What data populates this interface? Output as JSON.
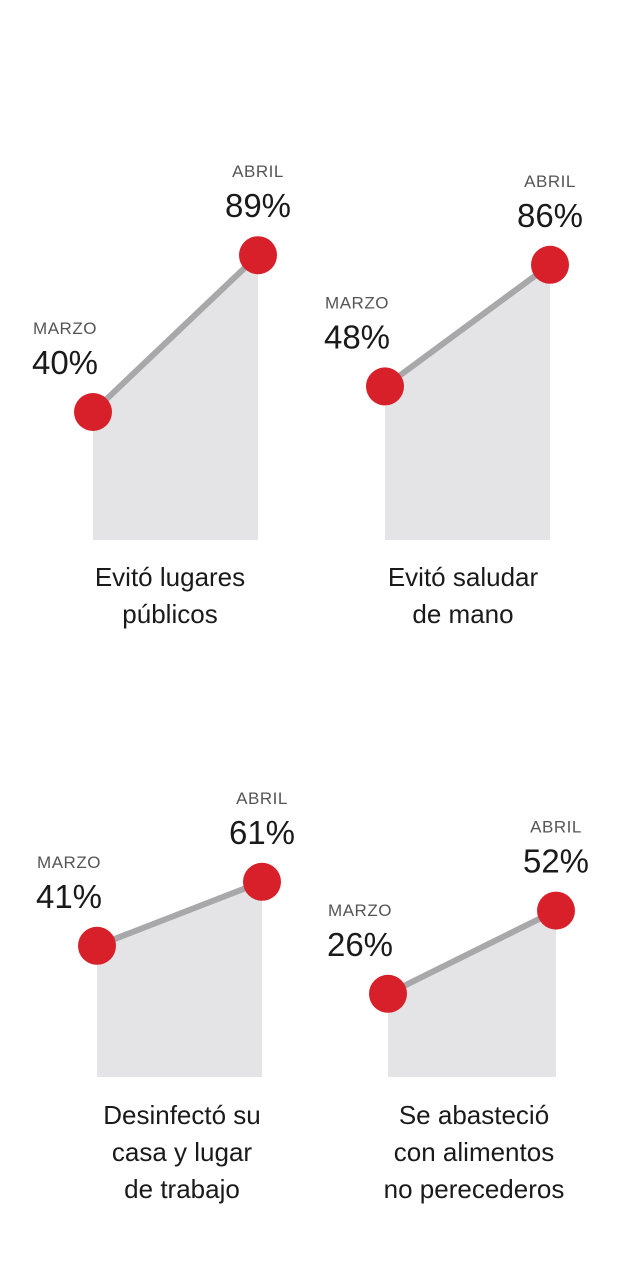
{
  "colors": {
    "area": "#e4e4e6",
    "line": "#a8a8ab",
    "marker": "#d7202a",
    "text": "#1a1a1a",
    "month_text": "#555555"
  },
  "chart_data": [
    {
      "type": "area",
      "categories": [
        "MARZO",
        "ABRIL"
      ],
      "values": [
        40,
        89
      ],
      "value_labels": [
        "40%",
        "89%"
      ],
      "caption": [
        "Evitó lugares",
        "públicos"
      ]
    },
    {
      "type": "area",
      "categories": [
        "MARZO",
        "ABRIL"
      ],
      "values": [
        48,
        86
      ],
      "value_labels": [
        "48%",
        "86%"
      ],
      "caption": [
        "Evitó saludar",
        "de mano"
      ]
    },
    {
      "type": "area",
      "categories": [
        "MARZO",
        "ABRIL"
      ],
      "values": [
        41,
        61
      ],
      "value_labels": [
        "41%",
        "61%"
      ],
      "caption": [
        "Desinfectó su",
        "casa y lugar",
        "de trabajo"
      ]
    },
    {
      "type": "area",
      "categories": [
        "MARZO",
        "ABRIL"
      ],
      "values": [
        26,
        52
      ],
      "value_labels": [
        "26%",
        "52%"
      ],
      "caption": [
        "Se abasteció",
        "con alimentos",
        "no perecederos"
      ]
    }
  ]
}
